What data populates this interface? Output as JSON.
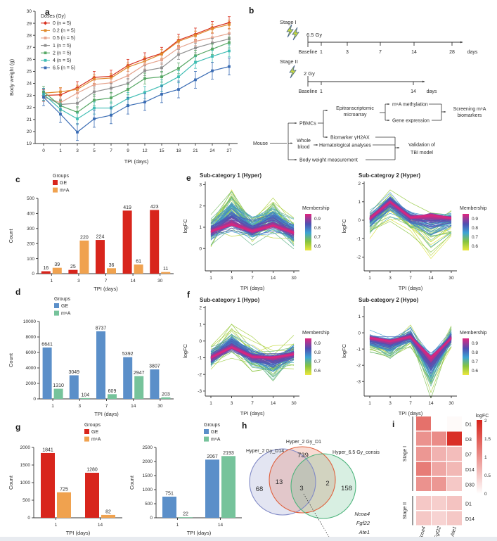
{
  "panels": {
    "a": "a",
    "b": "b",
    "c": "c",
    "d": "d",
    "e": "e",
    "f": "f",
    "g": "g",
    "h": "h",
    "i": "i"
  },
  "panel_b": {
    "stage1": {
      "label": "Stage I",
      "dose": "6.5 Gy",
      "ticks": [
        "Baseline",
        "1",
        "3",
        "7",
        "14",
        "28"
      ],
      "unit": "days"
    },
    "stage2": {
      "label": "Stage II",
      "dose": "2 Gy",
      "ticks": [
        "Baseline",
        "1",
        "14"
      ],
      "unit": "days"
    },
    "flow": {
      "mouse": "Mouse",
      "pbmcs": "PBMCs",
      "whole_blood": [
        "Whole",
        "blood"
      ],
      "body_weight": "Body weight measurement",
      "microarray": [
        "Epitranscriptomic",
        "microarray"
      ],
      "biomarker": "Biomarker γH2AX",
      "hematological": "Hematological analyses",
      "m6a_methylation": "m⁶A methylation",
      "gene_expression": "Gene expression",
      "screening": [
        "Screening m⁶A",
        "biomarkers"
      ],
      "validation": [
        "Validation of",
        "TBI model"
      ]
    }
  },
  "chart_data": [
    {
      "id": "a",
      "type": "line",
      "xlabel": "TPI (days)",
      "ylabel": "Body weight (g)",
      "legend_title": "Doses (Gy)",
      "x": [
        0,
        1,
        3,
        5,
        7,
        9,
        12,
        15,
        18,
        21,
        24,
        27
      ],
      "ylim": [
        19,
        30
      ],
      "yticks": [
        19,
        20,
        21,
        22,
        23,
        24,
        25,
        26,
        27,
        28,
        29,
        30
      ],
      "series": [
        {
          "name": "0 (n = 5)",
          "color": "#d8301f",
          "err": 0.5,
          "values": [
            23.0,
            23.05,
            23.65,
            24.5,
            24.6,
            25.5,
            26.05,
            26.5,
            27.6,
            28.1,
            28.65,
            29.05
          ]
        },
        {
          "name": "0.2 (n = 5)",
          "color": "#e0892b",
          "err": 0.35,
          "values": [
            23.2,
            23.3,
            23.5,
            24.35,
            24.45,
            25.35,
            25.85,
            26.45,
            27.5,
            28.0,
            28.55,
            28.9
          ]
        },
        {
          "name": "0.5 (n = 5)",
          "color": "#e5a38d",
          "err": 0.35,
          "values": [
            22.85,
            22.4,
            23.2,
            23.9,
            24.05,
            24.65,
            25.55,
            25.95,
            26.95,
            27.5,
            27.8,
            28.15
          ]
        },
        {
          "name": "1 (n = 5)",
          "color": "#8f8f8f",
          "err": 0.4,
          "values": [
            22.95,
            22.25,
            22.35,
            23.3,
            23.6,
            24.0,
            25.05,
            25.3,
            26.4,
            26.95,
            27.35,
            27.7
          ]
        },
        {
          "name": "2 (n = 5)",
          "color": "#56a865",
          "err": 0.45,
          "values": [
            23.3,
            22.15,
            21.6,
            22.6,
            22.8,
            23.5,
            24.4,
            24.55,
            25.25,
            26.3,
            26.85,
            27.4
          ]
        },
        {
          "name": "4 (n = 5)",
          "color": "#3fbdb4",
          "err": 0.5,
          "values": [
            23.1,
            21.85,
            21.05,
            21.95,
            21.95,
            22.75,
            23.25,
            23.8,
            24.55,
            25.75,
            26.25,
            26.7
          ]
        },
        {
          "name": "6.5 (n = 5)",
          "color": "#3a6cb4",
          "err": 0.7,
          "values": [
            22.85,
            21.45,
            19.95,
            21.05,
            21.35,
            22.15,
            22.45,
            23.1,
            23.5,
            24.3,
            25.05,
            25.4
          ]
        }
      ]
    },
    {
      "id": "c",
      "type": "bar",
      "xlabel": "TPI (days)",
      "ylabel": "Count",
      "legend_title": "Groups",
      "legend_pos": "tl",
      "categories": [
        "1",
        "3",
        "7",
        "14",
        "30"
      ],
      "ylim": [
        0,
        500
      ],
      "yticks": [
        0,
        100,
        200,
        300,
        400,
        500
      ],
      "series": [
        {
          "name": "GE",
          "color": "#d8251c",
          "values": [
            16,
            25,
            224,
            419,
            423
          ]
        },
        {
          "name": "m⁶A",
          "color": "#f0a24f",
          "values": [
            39,
            220,
            36,
            61,
            11
          ]
        }
      ]
    },
    {
      "id": "d",
      "type": "bar",
      "xlabel": "TPI (days)",
      "ylabel": "Count",
      "legend_title": "Groups",
      "legend_pos": "tl",
      "categories": [
        "1",
        "3",
        "7",
        "14",
        "30"
      ],
      "ylim": [
        0,
        10000
      ],
      "yticks": [
        0,
        2000,
        4000,
        6000,
        8000,
        10000
      ],
      "series": [
        {
          "name": "GE",
          "color": "#5b8fc9",
          "values": [
            6641,
            3049,
            8737,
            5392,
            3807
          ]
        },
        {
          "name": "m⁶A",
          "color": "#76c39b",
          "values": [
            1310,
            104,
            609,
            2947,
            203
          ]
        }
      ]
    },
    {
      "id": "e1",
      "type": "cluster",
      "title": "Sub-category 1 (Hyper)",
      "xlabel": "TPI (days)",
      "ylabel": "logFC",
      "x": [
        "1",
        "3",
        "7",
        "14",
        "30"
      ],
      "ylim": [
        -1.05,
        3.15
      ],
      "yticks": [
        0,
        1,
        2,
        3
      ],
      "legend_title": "Membership",
      "legend_ticks": [
        0.9,
        0.8,
        0.7,
        0.6
      ],
      "mean": [
        0.8,
        1.1,
        0.8,
        1.05,
        0.75
      ],
      "noise": 0.55,
      "amp": 0.9,
      "tail": [
        -0.4,
        1.5,
        0.1,
        0.9,
        -0.5
      ],
      "n_lines": 170,
      "seed": 11
    },
    {
      "id": "e2",
      "type": "cluster",
      "title": "Sub-categroy 2 (Hyper)",
      "xlabel": "TPI (days)",
      "ylabel": "logFC",
      "x": [
        "1",
        "3",
        "7",
        "14",
        "30"
      ],
      "ylim": [
        -2.75,
        2.1
      ],
      "yticks": [
        -2,
        -1,
        0,
        1,
        2
      ],
      "legend_title": "Membership",
      "legend_ticks": [
        0.9,
        0.8,
        0.7,
        0.6
      ],
      "mean": [
        0.1,
        1.0,
        0.15,
        0.3,
        0.12
      ],
      "noise": 0.5,
      "amp": 0.6,
      "tail": [
        -0.6,
        -0.7,
        -0.4,
        -2.3,
        -0.6
      ],
      "n_lines": 150,
      "seed": 22
    },
    {
      "id": "f1",
      "type": "cluster",
      "title": "Sub-category 1 (Hypo)",
      "xlabel": "TPI (days)",
      "ylabel": "logFC",
      "x": [
        "1",
        "3",
        "7",
        "14",
        "30"
      ],
      "ylim": [
        -3.3,
        2.1
      ],
      "yticks": [
        -3,
        -2,
        -1,
        0,
        1,
        2
      ],
      "legend_title": "Membership",
      "legend_ticks": [
        0.9,
        0.8,
        0.7,
        0.6
      ],
      "mean": [
        -1.0,
        -0.4,
        -0.95,
        -0.95,
        -0.8
      ],
      "noise": 0.55,
      "amp": 0.8,
      "tail": [
        0.3,
        1.3,
        0.5,
        -1.2,
        0.6
      ],
      "n_lines": 170,
      "seed": 33
    },
    {
      "id": "f2",
      "type": "cluster",
      "title": "Sub-category 2 (Hypo)",
      "xlabel": "TPI (days)",
      "ylabel": "logFC",
      "x": [
        "1",
        "3",
        "7",
        "14",
        "30"
      ],
      "ylim": [
        -3.9,
        1.65
      ],
      "yticks": [
        -3,
        -2,
        -1,
        0,
        1
      ],
      "legend_title": "Membership",
      "legend_ticks": [
        0.9,
        0.8,
        0.7,
        0.6
      ],
      "mean": [
        -0.3,
        -0.5,
        -0.25,
        -1.5,
        -0.35
      ],
      "noise": 0.5,
      "amp": 1.0,
      "tail": [
        -0.5,
        -0.9,
        0.5,
        -1.7,
        0.8
      ],
      "n_lines": 170,
      "seed": 44
    },
    {
      "id": "g1",
      "type": "bar",
      "xlabel": "TPI (days)",
      "ylabel": "Count",
      "legend_title": "Groups",
      "legend_pos": "tr",
      "categories": [
        "1",
        "14"
      ],
      "ylim": [
        0,
        2000
      ],
      "yticks": [
        0,
        500,
        1000,
        1500,
        2000
      ],
      "series": [
        {
          "name": "GE",
          "color": "#d8251c",
          "values": [
            1841,
            1280
          ]
        },
        {
          "name": "m⁶A",
          "color": "#f0a24f",
          "values": [
            725,
            82
          ]
        }
      ]
    },
    {
      "id": "g2",
      "type": "bar",
      "xlabel": "TPI (days)",
      "ylabel": "Count",
      "legend_title": "Groups",
      "legend_pos": "tr",
      "categories": [
        "1",
        "14"
      ],
      "ylim": [
        0,
        2500
      ],
      "yticks": [
        0,
        500,
        1000,
        1500,
        2000,
        2500
      ],
      "series": [
        {
          "name": "GE",
          "color": "#5b8fc9",
          "values": [
            751,
            2067
          ]
        },
        {
          "name": "m⁶A",
          "color": "#76c39b",
          "values": [
            22,
            2193
          ]
        }
      ]
    },
    {
      "id": "h",
      "type": "venn",
      "labels": [
        "Hyper_2 Gy_D14",
        "Hyper_2 Gy_D1",
        "Hyper_6.5 Gy_consis"
      ],
      "colors": [
        "#8089c6",
        "#e0603c",
        "#4db47c"
      ],
      "counts": {
        "set1_only": 68,
        "set2_only": 739,
        "set3_only": 158,
        "set1_set2": 13,
        "set2_set3": 2,
        "all_three": 3
      },
      "genes": [
        "Ncoa4",
        "Fgf22",
        "Ate1"
      ]
    },
    {
      "id": "i",
      "type": "heatmap",
      "colorbar_title": "logFC",
      "colorbar_ticks": [
        2,
        1.5,
        1,
        0.5,
        0
      ],
      "vmax": 2,
      "max_color": "#d7241c",
      "columns": [
        "Ncoa4",
        "Fgf22",
        "Ate1"
      ],
      "row_groups": [
        {
          "label": "Stage I",
          "rows": [
            "D1",
            "D3",
            "D7",
            "D14",
            "D30"
          ]
        },
        {
          "label": "Stage II",
          "rows": [
            "D1",
            "D14"
          ]
        }
      ],
      "values": [
        [
          1.3,
          0,
          0.05
        ],
        [
          1.0,
          1.05,
          1.9
        ],
        [
          0.95,
          0.7,
          0.6
        ],
        [
          1.2,
          0.8,
          0.65
        ],
        [
          1.0,
          0.95,
          0.5
        ],
        [
          0.5,
          0.45,
          0.55
        ],
        [
          0.5,
          0.4,
          0.5
        ]
      ]
    }
  ]
}
